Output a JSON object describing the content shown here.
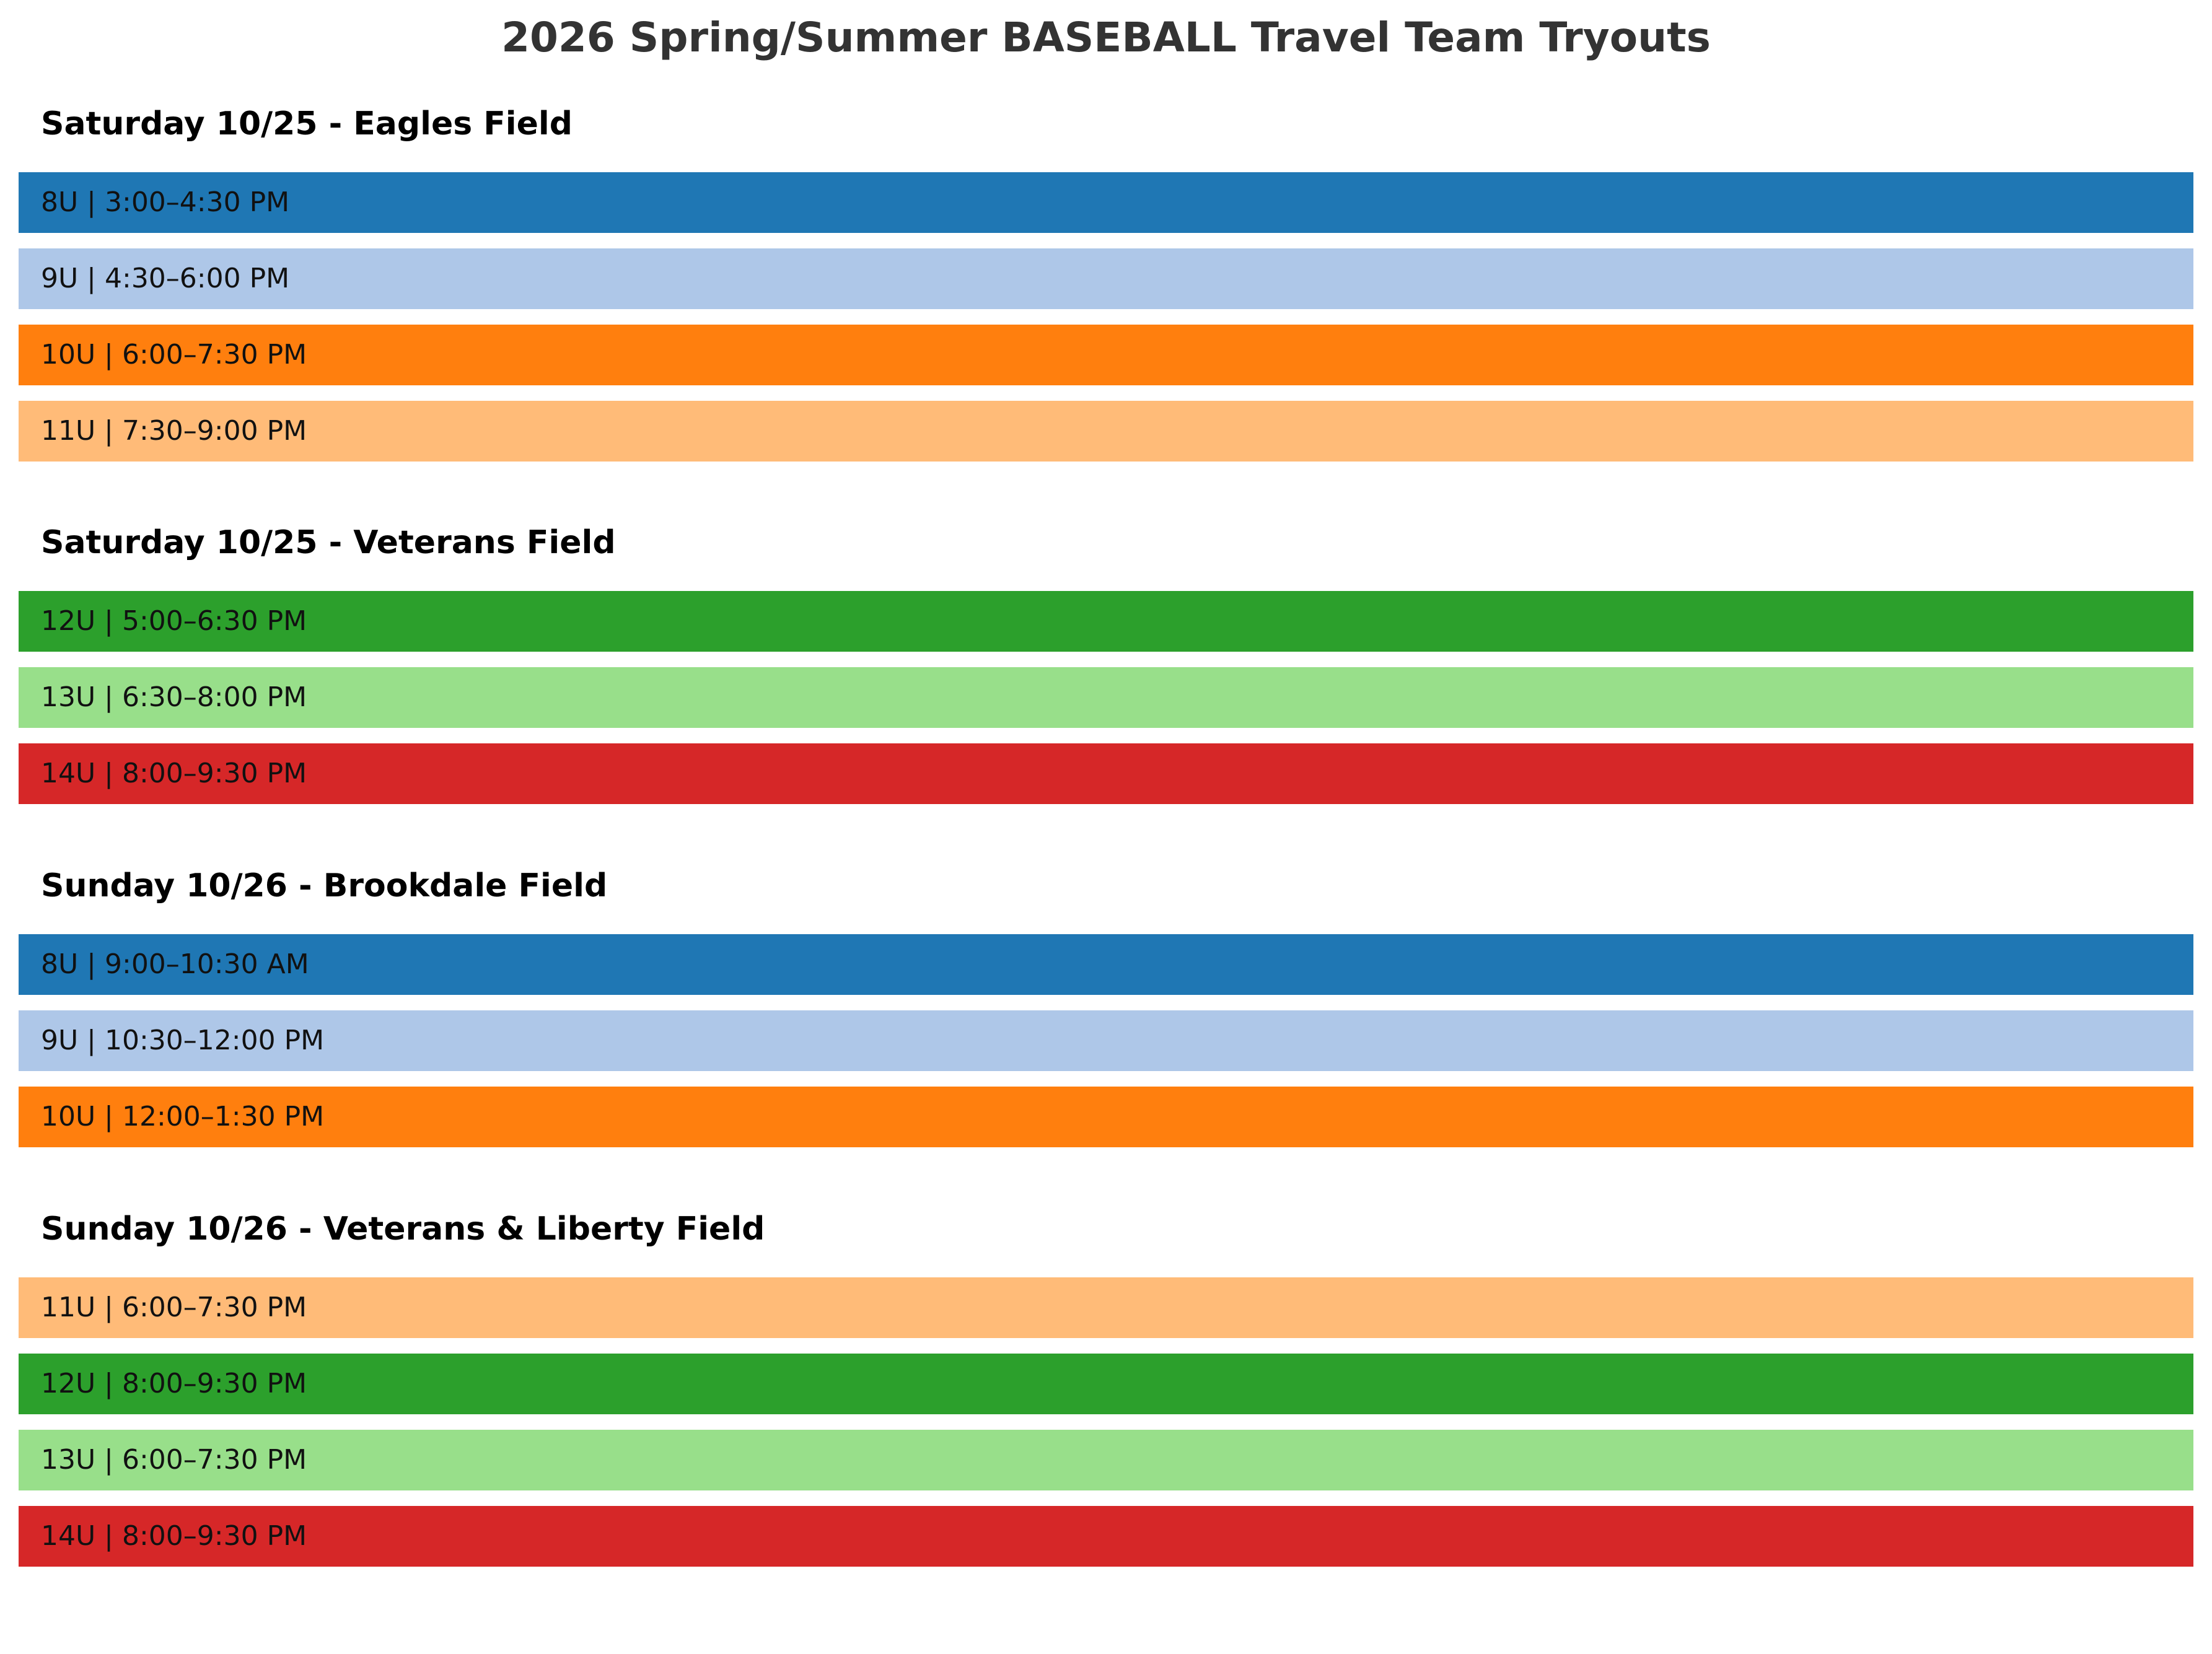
{
  "title": "2026 Spring/Summer BASEBALL Travel Team Tryouts",
  "colors": {
    "8U": "#1f77b4",
    "9U": "#aec7e8",
    "10U": "#ff7f0e",
    "11U": "#ffbb78",
    "12U": "#2ca02c",
    "13U": "#98df8a",
    "14U": "#d62728"
  },
  "sections": [
    {
      "heading": "Saturday 10/25 - Eagles Field",
      "slots": [
        {
          "age": "8U",
          "label": "8U | 3:00–4:30 PM"
        },
        {
          "age": "9U",
          "label": "9U | 4:30–6:00 PM"
        },
        {
          "age": "10U",
          "label": "10U | 6:00–7:30 PM"
        },
        {
          "age": "11U",
          "label": "11U | 7:30–9:00 PM"
        }
      ]
    },
    {
      "heading": "Saturday 10/25 - Veterans Field",
      "slots": [
        {
          "age": "12U",
          "label": "12U | 5:00–6:30 PM"
        },
        {
          "age": "13U",
          "label": "13U | 6:30–8:00 PM"
        },
        {
          "age": "14U",
          "label": "14U | 8:00–9:30 PM"
        }
      ]
    },
    {
      "heading": "Sunday 10/26 - Brookdale Field",
      "slots": [
        {
          "age": "8U",
          "label": "8U | 9:00–10:30 AM"
        },
        {
          "age": "9U",
          "label": "9U | 10:30–12:00 PM"
        },
        {
          "age": "10U",
          "label": "10U | 12:00–1:30 PM"
        }
      ]
    },
    {
      "heading": "Sunday 10/26 - Veterans & Liberty Field",
      "slots": [
        {
          "age": "11U",
          "label": "11U | 6:00–7:30 PM"
        },
        {
          "age": "12U",
          "label": "12U | 8:00–9:30 PM"
        },
        {
          "age": "13U",
          "label": "13U | 6:00–7:30 PM"
        },
        {
          "age": "14U",
          "label": "14U | 8:00–9:30 PM"
        }
      ]
    }
  ]
}
